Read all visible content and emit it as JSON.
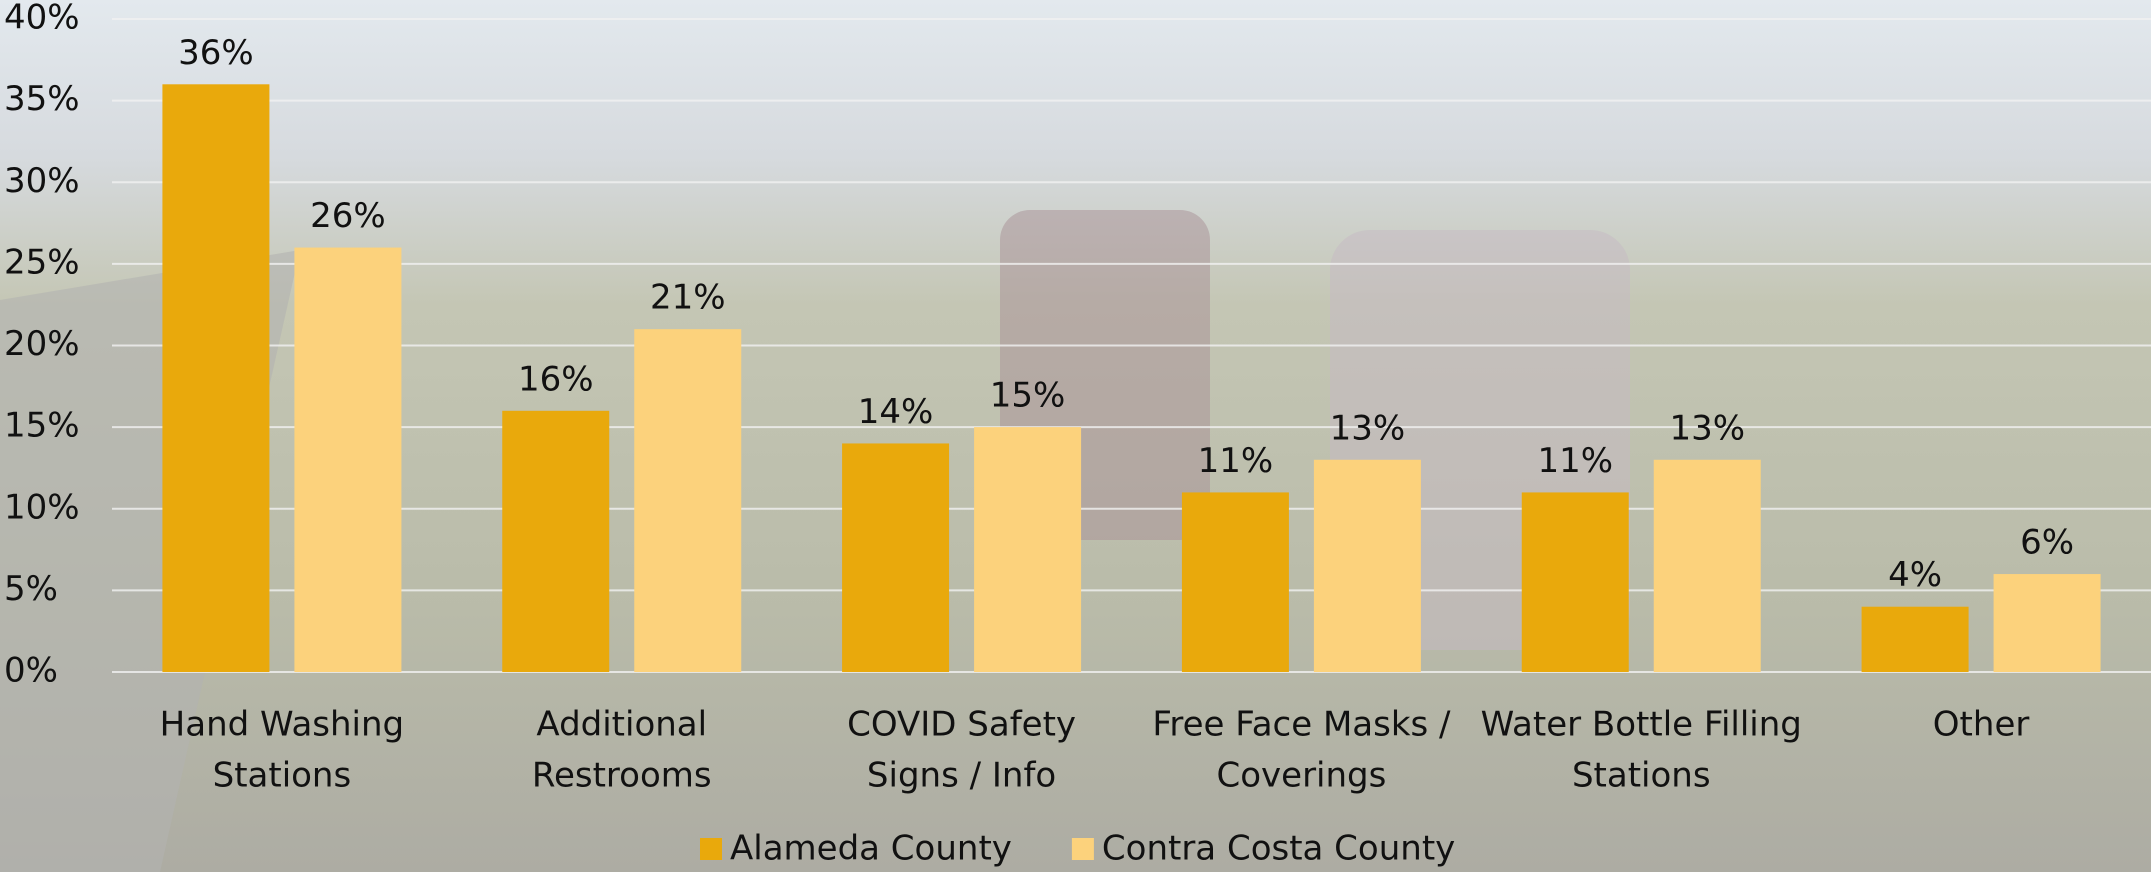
{
  "chart_data": {
    "type": "bar",
    "categories": [
      [
        "Hand Washing",
        "Stations"
      ],
      [
        "Additional",
        "Restrooms"
      ],
      [
        "COVID Safety",
        "Signs / Info"
      ],
      [
        "Free Face Masks /",
        "Coverings"
      ],
      [
        "Water Bottle Filling",
        "Stations"
      ],
      [
        "Other"
      ]
    ],
    "series": [
      {
        "name": "Alameda County",
        "color": "#e9a90c",
        "values": [
          36,
          16,
          14,
          11,
          11,
          4
        ],
        "value_labels": [
          "36%",
          "16%",
          "14%",
          "11%",
          "11%",
          "4%"
        ]
      },
      {
        "name": "Contra Costa County",
        "color": "#fcd27c",
        "values": [
          26,
          21,
          15,
          13,
          13,
          6
        ],
        "value_labels": [
          "26%",
          "21%",
          "15%",
          "13%",
          "13%",
          "6%"
        ]
      }
    ],
    "ylim": [
      0,
      40
    ],
    "yticks": [
      {
        "value": 0,
        "label": "0%"
      },
      {
        "value": 5,
        "label": "5%"
      },
      {
        "value": 10,
        "label": "10%"
      },
      {
        "value": 15,
        "label": "15%"
      },
      {
        "value": 20,
        "label": "20%"
      },
      {
        "value": 25,
        "label": "25%"
      },
      {
        "value": 30,
        "label": "30%"
      },
      {
        "value": 35,
        "label": "35%"
      },
      {
        "value": 40,
        "label": "40%"
      }
    ],
    "grid": true
  }
}
